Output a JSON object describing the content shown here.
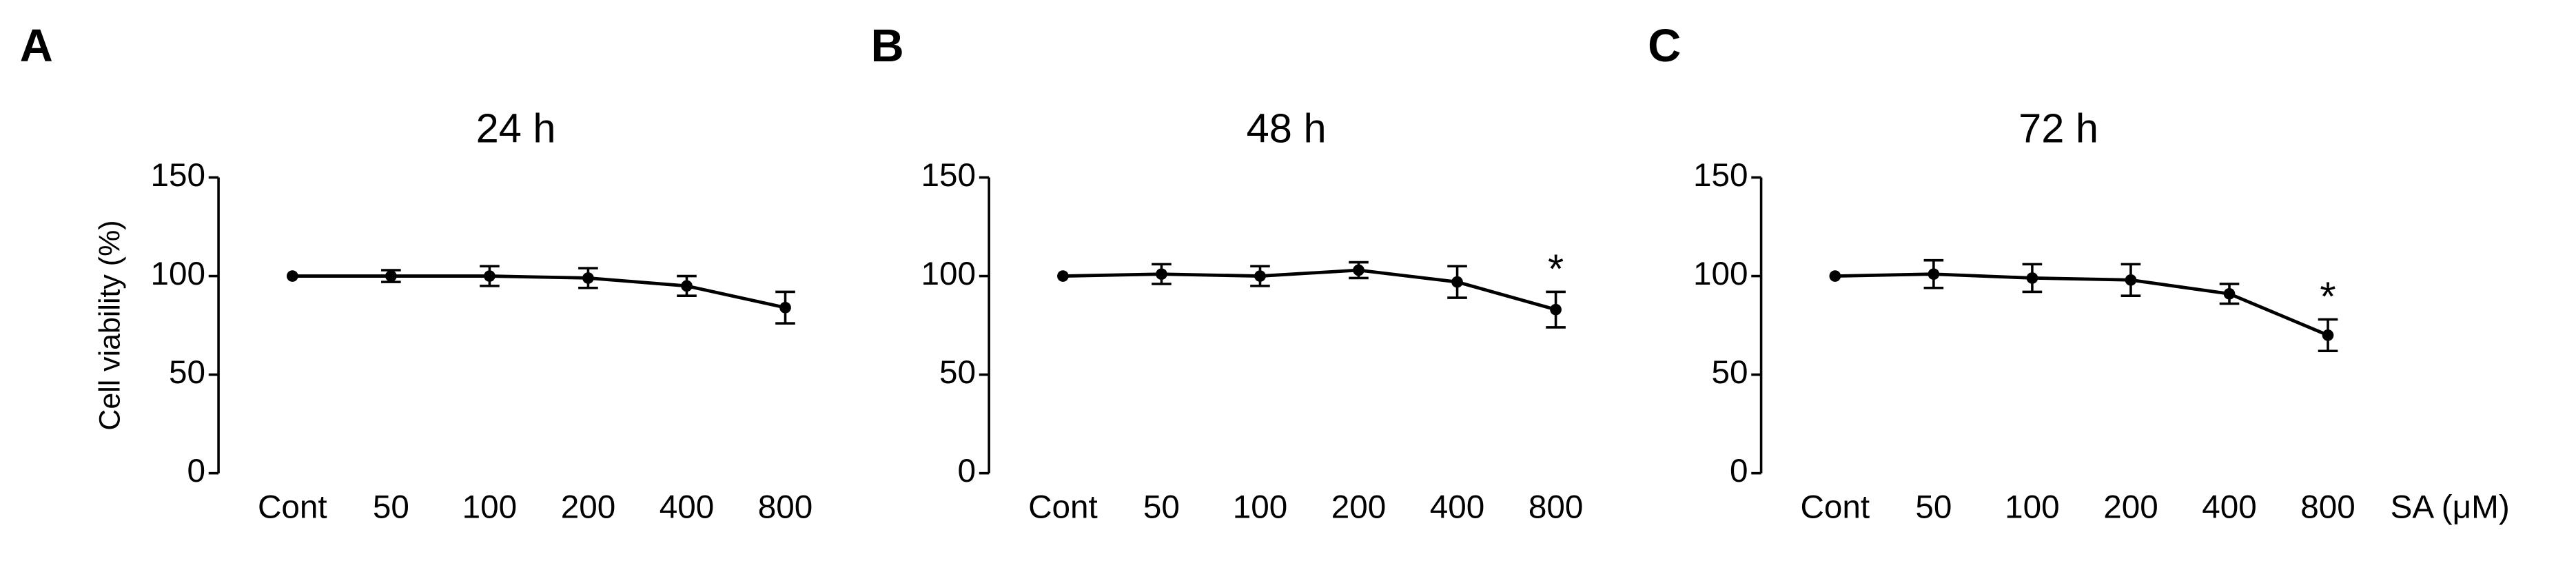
{
  "chart_data": [
    {
      "type": "line",
      "panel": "A",
      "title": "24 h",
      "ylabel": "Cell viability (%)",
      "categories": [
        "Cont",
        "50",
        "100",
        "200",
        "400",
        "800"
      ],
      "series": [
        {
          "color": "#000000",
          "values": [
            100,
            100,
            100,
            99,
            95,
            84
          ],
          "errors": [
            0,
            3,
            5,
            5,
            5,
            8
          ]
        }
      ],
      "ylim": [
        0,
        150
      ],
      "yticks": [
        0,
        50,
        100,
        150
      ],
      "annotations": []
    },
    {
      "type": "line",
      "panel": "B",
      "title": "48 h",
      "categories": [
        "Cont",
        "50",
        "100",
        "200",
        "400",
        "800"
      ],
      "series": [
        {
          "color": "#000000",
          "values": [
            100,
            101,
            100,
            103,
            97,
            83
          ],
          "errors": [
            0,
            5,
            5,
            4,
            8,
            9
          ]
        }
      ],
      "ylim": [
        0,
        150
      ],
      "yticks": [
        0,
        50,
        100,
        150
      ],
      "annotations": [
        {
          "text": "*",
          "x": "800"
        }
      ]
    },
    {
      "type": "line",
      "panel": "C",
      "title": "72 h",
      "xlabel": "SA (μM)",
      "categories": [
        "Cont",
        "50",
        "100",
        "200",
        "400",
        "800"
      ],
      "series": [
        {
          "color": "#000000",
          "values": [
            100,
            101,
            99,
            98,
            91,
            70
          ],
          "errors": [
            0,
            7,
            7,
            8,
            5,
            8
          ]
        }
      ],
      "ylim": [
        0,
        150
      ],
      "yticks": [
        0,
        50,
        100,
        150
      ],
      "annotations": [
        {
          "text": "*",
          "x": "800"
        }
      ]
    }
  ]
}
